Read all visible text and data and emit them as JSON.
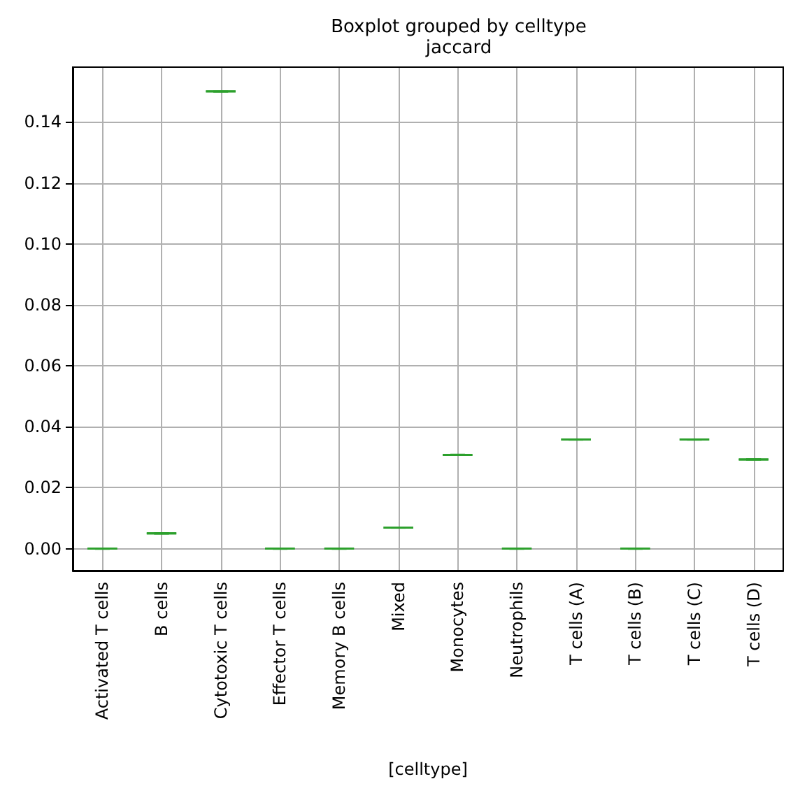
{
  "chart_data": {
    "type": "box",
    "title": "Boxplot grouped by celltype",
    "subtitle": "jaccard",
    "xlabel": "[celltype]",
    "categories": [
      "Activated T cells",
      "B cells",
      "Cytotoxic T cells",
      "Effector T cells",
      "Memory B cells",
      "Mixed",
      "Monocytes",
      "Neutrophils",
      "T cells (A)",
      "T cells (B)",
      "T cells (C)",
      "T cells (D)"
    ],
    "series": [
      {
        "color": "#2ca02c",
        "boxes": [
          {
            "low": 0,
            "q1": 0,
            "median": 0,
            "q3": 0,
            "high": 0
          },
          {
            "low": 0.005,
            "q1": 0.005,
            "median": 0.005,
            "q3": 0.005,
            "high": 0.005
          },
          {
            "low": 0.15,
            "q1": 0.15,
            "median": 0.15,
            "q3": 0.15,
            "high": 0.15
          },
          {
            "low": 0,
            "q1": 0,
            "median": 0,
            "q3": 0,
            "high": 0
          },
          {
            "low": 0,
            "q1": 0,
            "median": 0,
            "q3": 0,
            "high": 0
          },
          {
            "low": 0.0069,
            "q1": 0.0069,
            "median": 0.0069,
            "q3": 0.0069,
            "high": 0.0069
          },
          {
            "low": 0.0308,
            "q1": 0.0308,
            "median": 0.0308,
            "q3": 0.0308,
            "high": 0.0308
          },
          {
            "low": 0,
            "q1": 0,
            "median": 0,
            "q3": 0,
            "high": 0
          },
          {
            "low": 0.0358,
            "q1": 0.0358,
            "median": 0.0358,
            "q3": 0.0358,
            "high": 0.0358
          },
          {
            "low": 0,
            "q1": 0,
            "median": 0,
            "q3": 0,
            "high": 0
          },
          {
            "low": 0.0358,
            "q1": 0.0358,
            "median": 0.0358,
            "q3": 0.0358,
            "high": 0.0358
          },
          {
            "low": 0.0293,
            "q1": 0.0293,
            "median": 0.0293,
            "q3": 0.0293,
            "high": 0.0293
          }
        ]
      }
    ],
    "ylim": [
      -0.0072,
      0.158
    ],
    "yticks": [
      {
        "value": 0,
        "label": "0.00"
      },
      {
        "value": 0.02,
        "label": "0.02"
      },
      {
        "value": 0.04,
        "label": "0.04"
      },
      {
        "value": 0.06,
        "label": "0.06"
      },
      {
        "value": 0.08,
        "label": "0.08"
      },
      {
        "value": 0.1,
        "label": "0.10"
      },
      {
        "value": 0.12,
        "label": "0.12"
      },
      {
        "value": 0.14,
        "label": "0.14"
      }
    ],
    "grid": true
  }
}
